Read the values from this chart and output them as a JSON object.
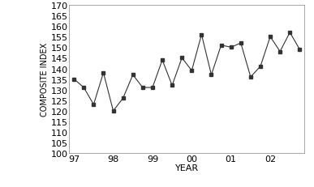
{
  "x_values": [
    0,
    1,
    2,
    3,
    4,
    5,
    6,
    7,
    8,
    9,
    10,
    11,
    12,
    13,
    14,
    15,
    16,
    17,
    18,
    19,
    20,
    21,
    22,
    23
  ],
  "y_values": [
    135,
    131,
    123,
    138,
    120,
    126,
    137,
    131,
    131,
    144,
    132,
    145,
    139,
    156,
    137,
    151,
    150,
    152,
    136,
    141,
    155,
    148,
    157,
    149
  ],
  "x_tick_positions": [
    0,
    4,
    8,
    12,
    16,
    20
  ],
  "x_tick_labels": [
    "97",
    "98",
    "99",
    "00",
    "01",
    "02"
  ],
  "y_min": 100,
  "y_max": 170,
  "y_tick_step": 5,
  "xlabel": "YEAR",
  "ylabel": "COMPOSITE INDEX",
  "line_color": "#333333",
  "marker": "s",
  "marker_color": "#333333",
  "marker_size": 3,
  "bg_color": "#ffffff",
  "tick_fontsize": 8,
  "ylabel_fontsize": 7,
  "xlabel_fontsize": 8
}
